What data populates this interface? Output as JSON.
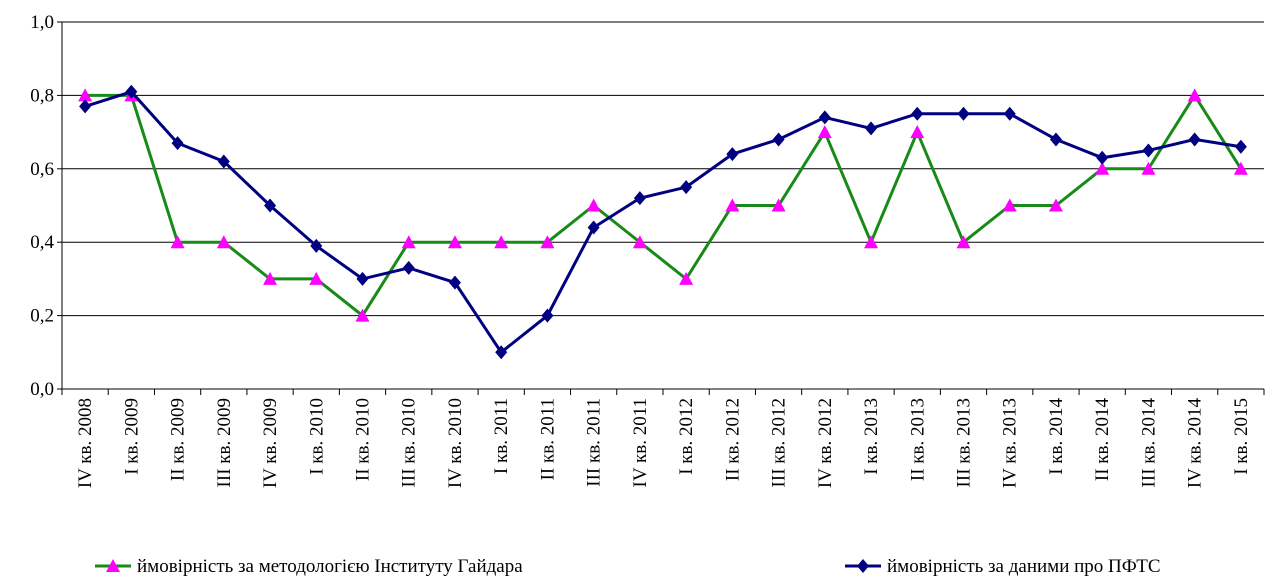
{
  "chart_data": {
    "type": "line",
    "categories": [
      "IV кв. 2008",
      "I кв. 2009",
      "II кв. 2009",
      "III кв. 2009",
      "IV кв. 2009",
      "I кв. 2010",
      "II кв. 2010",
      "III кв. 2010",
      "IV кв. 2010",
      "I кв. 2011",
      "II кв. 2011",
      "III кв. 2011",
      "IV кв. 2011",
      "I кв. 2012",
      "II кв. 2012",
      "III кв. 2012",
      "IV кв. 2012",
      "I кв. 2013",
      "II кв. 2013",
      "III кв. 2013",
      "IV кв. 2013",
      "I кв. 2014",
      "II кв. 2014",
      "III кв. 2014",
      "IV кв. 2014",
      "I кв. 2015"
    ],
    "series": [
      {
        "name": "ймовірність за методологією Інституту Гайдара",
        "color": "#188a18",
        "marker_color": "#ff00ff",
        "marker": "triangle",
        "values": [
          0.8,
          0.8,
          0.4,
          0.4,
          0.3,
          0.3,
          0.2,
          0.4,
          0.4,
          0.4,
          0.4,
          0.5,
          0.4,
          0.3,
          0.5,
          0.5,
          0.7,
          0.4,
          0.7,
          0.4,
          0.5,
          0.5,
          0.6,
          0.6,
          0.8,
          0.6
        ]
      },
      {
        "name": "ймовірність за даними про ПФТС",
        "color": "#000080",
        "marker_color": "#000080",
        "marker": "diamond",
        "values": [
          0.77,
          0.81,
          0.67,
          0.62,
          0.5,
          0.39,
          0.3,
          0.33,
          0.29,
          0.1,
          0.2,
          0.44,
          0.52,
          0.55,
          0.64,
          0.68,
          0.74,
          0.71,
          0.75,
          0.75,
          0.75,
          0.68,
          0.63,
          0.65,
          0.68,
          0.66
        ]
      }
    ],
    "ylim": [
      0,
      1
    ],
    "yticks": [
      {
        "value": 0,
        "label": "0,0"
      },
      {
        "value": 0.2,
        "label": "0,2"
      },
      {
        "value": 0.4,
        "label": "0,4"
      },
      {
        "value": 0.6,
        "label": "0,6"
      },
      {
        "value": 0.8,
        "label": "0,8"
      },
      {
        "value": 1,
        "label": "1,0"
      }
    ],
    "grid": true,
    "legend": "bottom"
  }
}
